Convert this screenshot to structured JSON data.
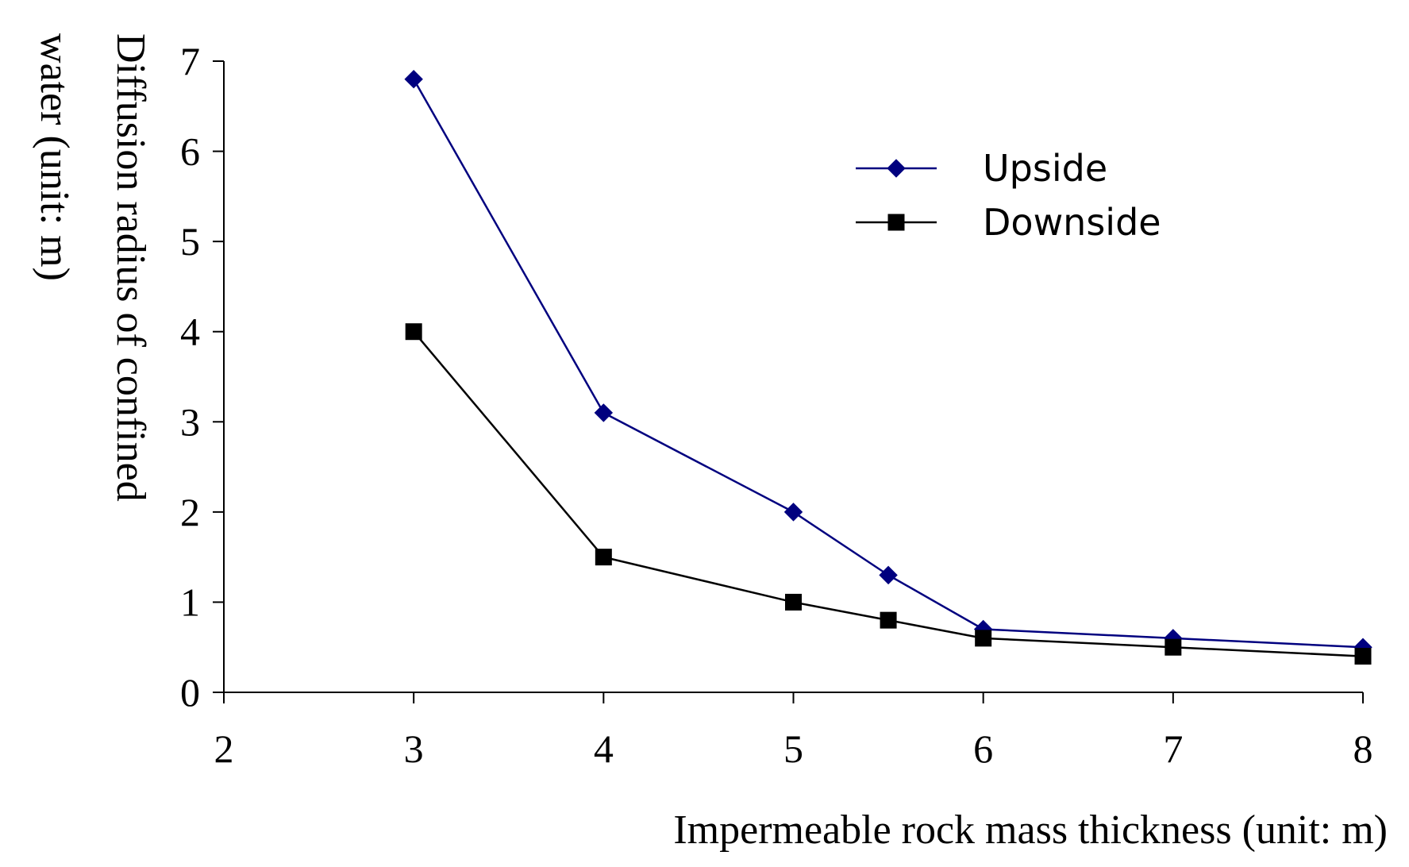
{
  "chart_data": {
    "type": "line",
    "title": "",
    "xlabel": "Impermeable rock mass thickness (unit: m)",
    "ylabel_lines": [
      "Diffusion radius of confined",
      "water (unit: m)"
    ],
    "xlim": [
      2,
      8
    ],
    "ylim": [
      0,
      7
    ],
    "x_ticks": [
      2,
      3,
      4,
      5,
      6,
      7,
      8
    ],
    "y_ticks": [
      0,
      1,
      2,
      3,
      4,
      5,
      6,
      7
    ],
    "x_tick_labels": [
      "2",
      "3",
      "4",
      "5",
      "6",
      "7",
      "8"
    ],
    "y_tick_labels": [
      "0",
      "1",
      "2",
      "3",
      "4",
      "5",
      "6",
      "7"
    ],
    "x_positions": [
      2,
      3,
      4,
      5,
      6,
      7,
      8
    ],
    "grid": false,
    "legend_position": "top-right",
    "series": [
      {
        "name": "Upside",
        "marker": "diamond",
        "color": "#00007f",
        "x": [
          3,
          4,
          5,
          5.5,
          6,
          7,
          8
        ],
        "values": [
          6.8,
          3.1,
          2.0,
          1.3,
          0.7,
          0.6,
          0.5
        ]
      },
      {
        "name": "Downside",
        "marker": "square",
        "color": "#000000",
        "x": [
          3,
          4,
          5,
          5.5,
          6,
          7,
          8
        ],
        "values": [
          4.0,
          1.5,
          1.0,
          0.8,
          0.6,
          0.5,
          0.4
        ]
      }
    ]
  }
}
